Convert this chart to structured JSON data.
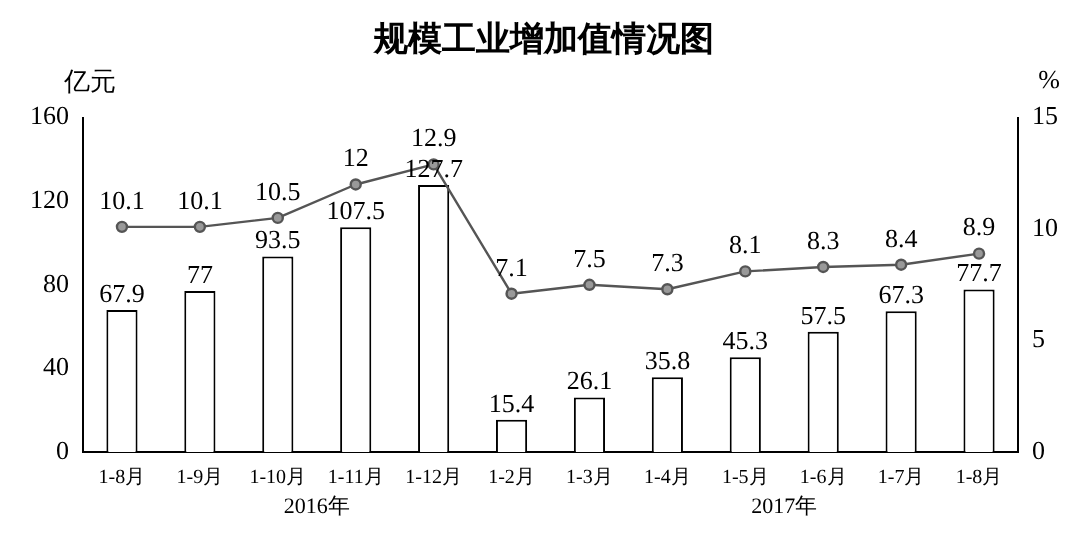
{
  "chart_data": {
    "type": "bar",
    "title": "规模工业增加值情况图",
    "ylabel": "亿元",
    "y2label": "%",
    "categories": [
      "1-8月",
      "1-9月",
      "1-10月",
      "1-11月",
      "1-12月",
      "1-2月",
      "1-3月",
      "1-4月",
      "1-5月",
      "1-6月",
      "1-7月",
      "1-8月"
    ],
    "series": [
      {
        "color": "#ffffff",
        "values": [
          67.9,
          77,
          93.5,
          107.5,
          127.7,
          15.4,
          26.1,
          35.8,
          45.3,
          57.5,
          67.3,
          77.7
        ]
      },
      {
        "type": "line",
        "axis": "y2",
        "color": "#555555",
        "marker": "circle",
        "values": [
          10.1,
          10.1,
          10.5,
          12,
          12.9,
          7.1,
          7.5,
          7.3,
          8.1,
          8.3,
          8.4,
          8.9
        ]
      }
    ],
    "ylim": [
      0,
      160
    ],
    "yticks": [
      0,
      40,
      80,
      120,
      160
    ],
    "y2lim": [
      0,
      15
    ],
    "y2ticks": [
      0,
      5,
      10,
      15
    ],
    "data_labels": true,
    "grid": false,
    "legend": false,
    "annotations": [
      "2016年",
      "2017年"
    ]
  }
}
